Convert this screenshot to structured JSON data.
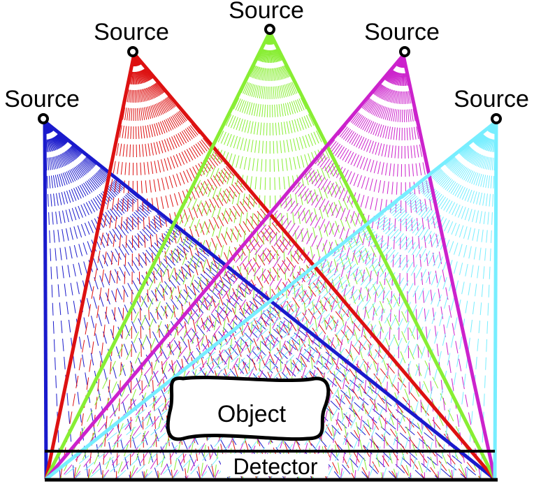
{
  "colors": {
    "background": "#ffffff",
    "outline": "#000000"
  },
  "sources": [
    {
      "label": "Source",
      "color": "#1a1acc"
    },
    {
      "label": "Source",
      "color": "#dd1111"
    },
    {
      "label": "Source",
      "color": "#88ee33"
    },
    {
      "label": "Source",
      "color": "#cc22cc"
    },
    {
      "label": "Source",
      "color": "#77eeff"
    }
  ],
  "object": {
    "label": "Object"
  },
  "detector": {
    "label": "Detector"
  }
}
